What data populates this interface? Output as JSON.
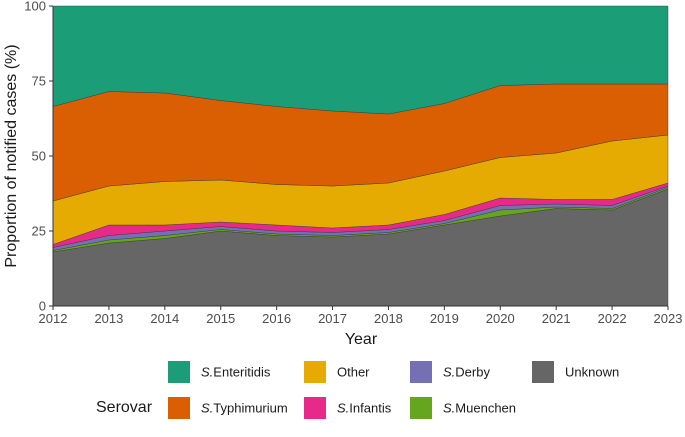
{
  "chart_data": {
    "type": "area",
    "stacking": "normalized",
    "xlabel": "Year",
    "ylabel": "Proportion of notified cases (%)",
    "x": [
      2012,
      2013,
      2014,
      2015,
      2016,
      2017,
      2018,
      2019,
      2020,
      2021,
      2022,
      2023
    ],
    "ylim": [
      0,
      100
    ],
    "yticks": [
      0,
      25,
      50,
      75,
      100
    ],
    "stack_order": [
      "Unknown",
      "S.Muenchen",
      "S.Derby",
      "S.Infantis",
      "Other",
      "S.Typhimurium",
      "S.Enteritidis"
    ],
    "series": [
      {
        "name": "Unknown",
        "color": "#666666",
        "values": [
          18,
          21,
          22.5,
          25,
          23.5,
          23,
          24,
          27,
          30,
          32.5,
          32,
          39
        ]
      },
      {
        "name": "S.Muenchen",
        "color": "#66a61e",
        "values": [
          0.5,
          1,
          1,
          0.5,
          0.5,
          0.5,
          0.5,
          0.5,
          2,
          0.5,
          0.5,
          0.5
        ]
      },
      {
        "name": "S.Derby",
        "color": "#7570b3",
        "values": [
          1,
          1.5,
          1.5,
          1,
          1,
          1,
          1,
          1,
          1.5,
          1,
          1,
          0.5
        ]
      },
      {
        "name": "S.Infantis",
        "color": "#e7298a",
        "values": [
          1,
          3.5,
          2,
          1.5,
          2,
          1.5,
          1.5,
          2,
          2.5,
          1.5,
          2,
          1
        ]
      },
      {
        "name": "Other",
        "color": "#e6ab02",
        "values": [
          14.5,
          13,
          14.5,
          14,
          13.5,
          14,
          14,
          14.5,
          13.5,
          15.5,
          19.5,
          16
        ]
      },
      {
        "name": "S.Typhimurium",
        "color": "#d95f02",
        "values": [
          31.5,
          31.5,
          29.5,
          26.5,
          26,
          25,
          23,
          22.5,
          24,
          23,
          19,
          17
        ]
      },
      {
        "name": "S.Enteritidis",
        "color": "#1b9e77",
        "values": [
          33.5,
          28.5,
          29,
          31.5,
          33.5,
          35,
          36,
          32.5,
          26.5,
          26,
          26,
          26
        ]
      }
    ],
    "legend": {
      "title": "Serovar",
      "position": "bottom",
      "rows": [
        [
          {
            "prefix": "S.",
            "label": "Enteritidis",
            "color": "#1b9e77"
          },
          {
            "prefix": "",
            "label": "Other",
            "color": "#e6ab02"
          },
          {
            "prefix": "S.",
            "label": "Derby",
            "color": "#7570b3"
          },
          {
            "prefix": "",
            "label": "Unknown",
            "color": "#666666"
          }
        ],
        [
          {
            "prefix": "S.",
            "label": "Typhimurium",
            "color": "#d95f02"
          },
          {
            "prefix": "S.",
            "label": "Infantis",
            "color": "#e7298a"
          },
          {
            "prefix": "S.",
            "label": "Muenchen",
            "color": "#66a61e"
          }
        ]
      ]
    }
  }
}
